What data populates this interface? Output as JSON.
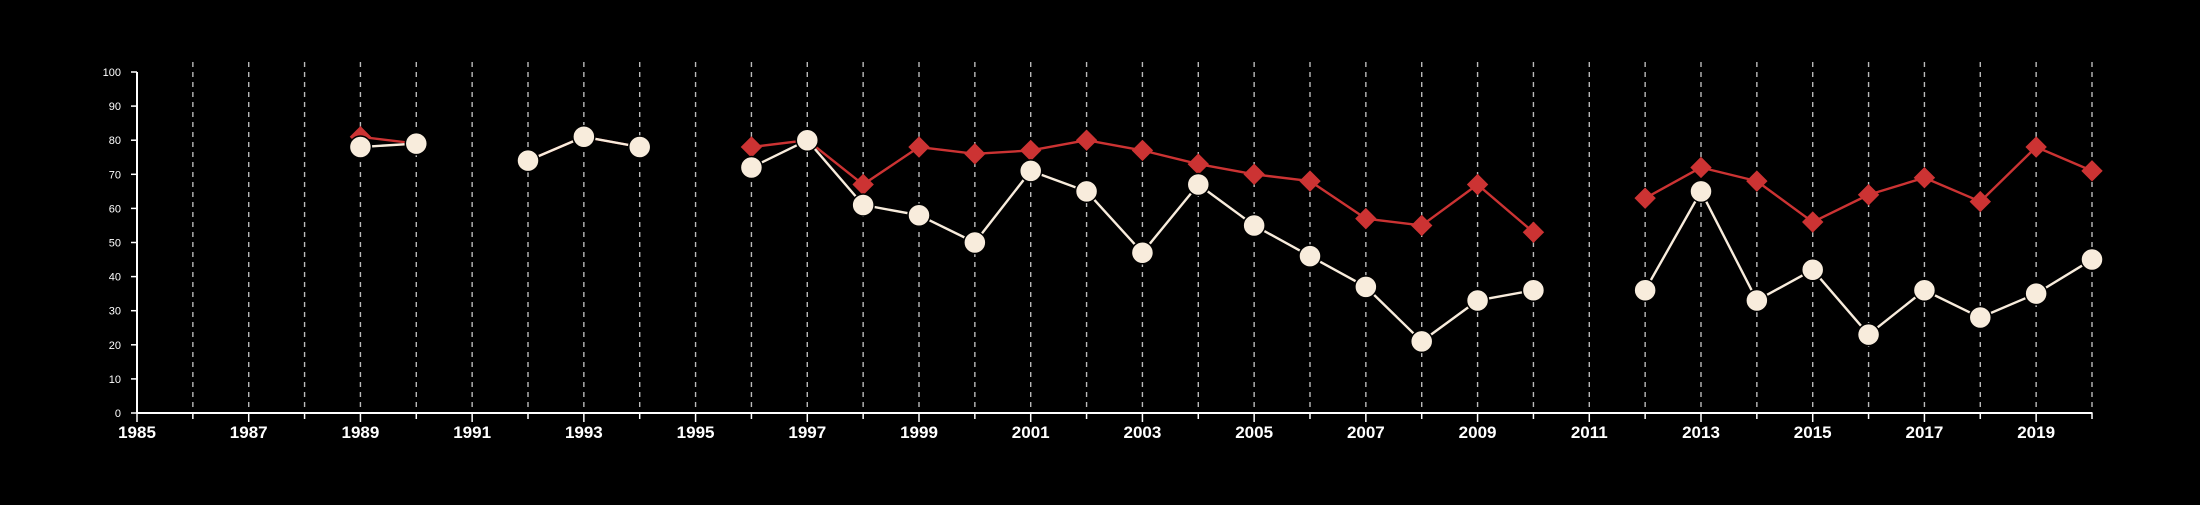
{
  "chart_data": {
    "type": "line",
    "title": "",
    "xlabel": "",
    "ylabel": "",
    "xlim": [
      1985,
      2020
    ],
    "ylim": [
      0,
      100
    ],
    "x_ticks": [
      1985,
      1987,
      1989,
      1991,
      1993,
      1995,
      1997,
      1999,
      2001,
      2003,
      2005,
      2007,
      2009,
      2011,
      2013,
      2015,
      2017,
      2019
    ],
    "y_ticks": [
      0,
      10,
      20,
      30,
      40,
      50,
      60,
      70,
      80,
      90,
      100
    ],
    "grid": "vertical dashed lines at every year",
    "background_color": "#000000",
    "axis_color": "#ffffff",
    "series": [
      {
        "color": "#cc3333",
        "marker": "diamond",
        "points": [
          {
            "x": 1989,
            "y": 81
          },
          {
            "x": 1990,
            "y": 79
          },
          {
            "x": 1991,
            "y": null
          },
          {
            "x": 1992,
            "y": 74
          },
          {
            "x": 1993,
            "y": 81
          },
          {
            "x": 1994,
            "y": 78
          },
          {
            "x": 1995,
            "y": null
          },
          {
            "x": 1996,
            "y": 78
          },
          {
            "x": 1997,
            "y": 80
          },
          {
            "x": 1998,
            "y": 67
          },
          {
            "x": 1999,
            "y": 78
          },
          {
            "x": 2000,
            "y": 76
          },
          {
            "x": 2001,
            "y": 77
          },
          {
            "x": 2002,
            "y": 80
          },
          {
            "x": 2003,
            "y": 77
          },
          {
            "x": 2004,
            "y": 73
          },
          {
            "x": 2005,
            "y": 70
          },
          {
            "x": 2006,
            "y": 68
          },
          {
            "x": 2007,
            "y": 57
          },
          {
            "x": 2008,
            "y": 55
          },
          {
            "x": 2009,
            "y": 67
          },
          {
            "x": 2010,
            "y": 53
          },
          {
            "x": 2011,
            "y": null
          },
          {
            "x": 2012,
            "y": 63
          },
          {
            "x": 2013,
            "y": 72
          },
          {
            "x": 2014,
            "y": 68
          },
          {
            "x": 2015,
            "y": 56
          },
          {
            "x": 2016,
            "y": 64
          },
          {
            "x": 2017,
            "y": 69
          },
          {
            "x": 2018,
            "y": 62
          },
          {
            "x": 2019,
            "y": 78
          },
          {
            "x": 2020,
            "y": 71
          }
        ]
      },
      {
        "color": "#f8ecdc",
        "marker": "circle",
        "points": [
          {
            "x": 1989,
            "y": 78
          },
          {
            "x": 1990,
            "y": 79
          },
          {
            "x": 1991,
            "y": null
          },
          {
            "x": 1992,
            "y": 74
          },
          {
            "x": 1993,
            "y": 81
          },
          {
            "x": 1994,
            "y": 78
          },
          {
            "x": 1995,
            "y": null
          },
          {
            "x": 1996,
            "y": 72
          },
          {
            "x": 1997,
            "y": 80
          },
          {
            "x": 1998,
            "y": 61
          },
          {
            "x": 1999,
            "y": 58
          },
          {
            "x": 2000,
            "y": 50
          },
          {
            "x": 2001,
            "y": 71
          },
          {
            "x": 2002,
            "y": 65
          },
          {
            "x": 2003,
            "y": 47
          },
          {
            "x": 2004,
            "y": 67
          },
          {
            "x": 2005,
            "y": 55
          },
          {
            "x": 2006,
            "y": 46
          },
          {
            "x": 2007,
            "y": 37
          },
          {
            "x": 2008,
            "y": 21
          },
          {
            "x": 2009,
            "y": 33
          },
          {
            "x": 2010,
            "y": 36
          },
          {
            "x": 2011,
            "y": null
          },
          {
            "x": 2012,
            "y": 36
          },
          {
            "x": 2013,
            "y": 65
          },
          {
            "x": 2014,
            "y": 33
          },
          {
            "x": 2015,
            "y": 42
          },
          {
            "x": 2016,
            "y": 23
          },
          {
            "x": 2017,
            "y": 36
          },
          {
            "x": 2018,
            "y": 28
          },
          {
            "x": 2019,
            "y": 35
          },
          {
            "x": 2020,
            "y": 45
          }
        ]
      }
    ]
  }
}
